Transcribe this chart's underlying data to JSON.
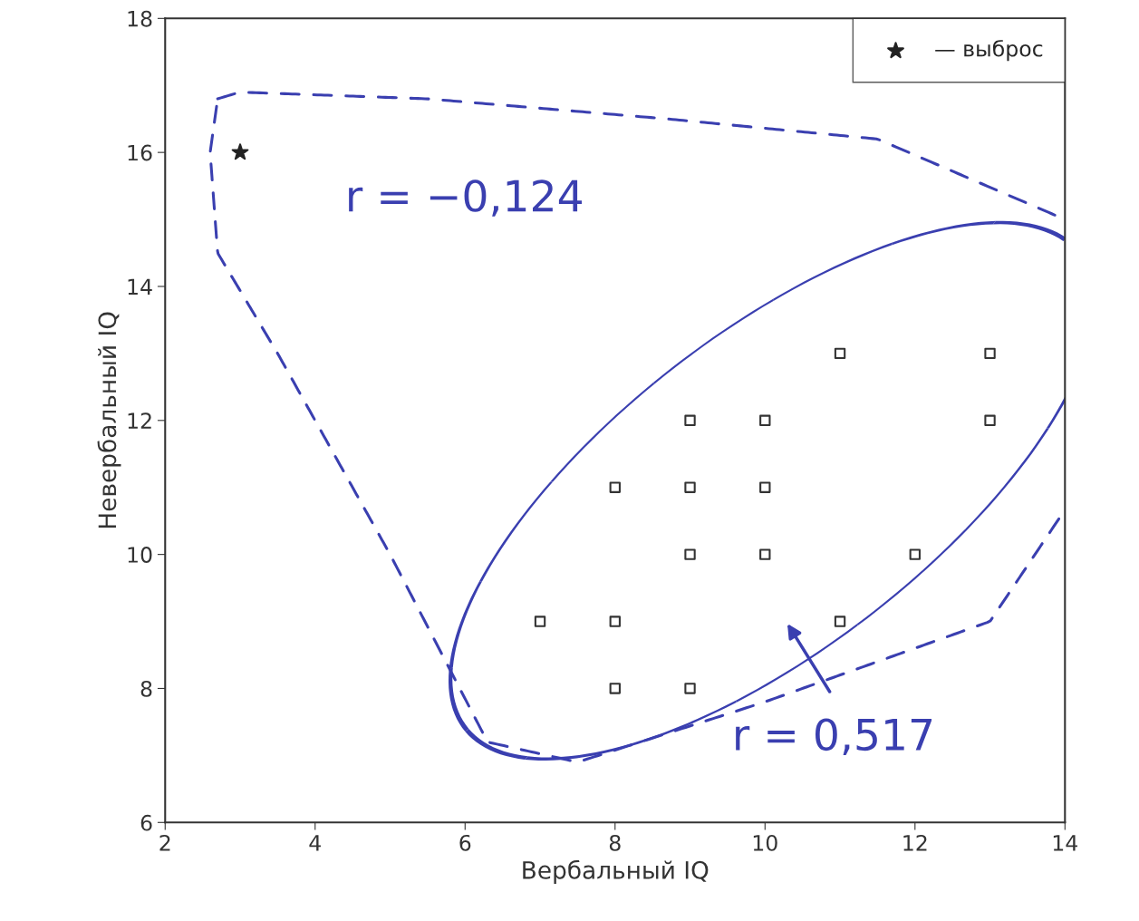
{
  "chart_data": {
    "type": "scatter",
    "xlabel": "Вербальный IQ",
    "ylabel": "Невербальный IQ",
    "series": [
      {
        "color": "#333333",
        "marker": "square",
        "x": [
          7,
          8,
          8,
          9,
          8,
          9,
          9,
          10,
          9,
          10,
          10,
          11,
          13,
          13,
          12,
          11
        ],
        "values": [
          9,
          9,
          8,
          8,
          11,
          11,
          12,
          12,
          10,
          10,
          11,
          13,
          13,
          12,
          10,
          9
        ]
      },
      {
        "name": "— выброс",
        "color": "#222222",
        "marker": "star",
        "x": [
          3
        ],
        "values": [
          16
        ]
      }
    ],
    "xlim": [
      2,
      14
    ],
    "ylim": [
      6,
      18
    ],
    "xticks": [
      2,
      4,
      6,
      8,
      10,
      12,
      14
    ],
    "yticks": [
      6,
      8,
      10,
      12,
      14,
      16,
      18
    ],
    "grid": false,
    "legend": "top right",
    "annotations": [
      "r = −0,124",
      "r = 0,517"
    ]
  }
}
